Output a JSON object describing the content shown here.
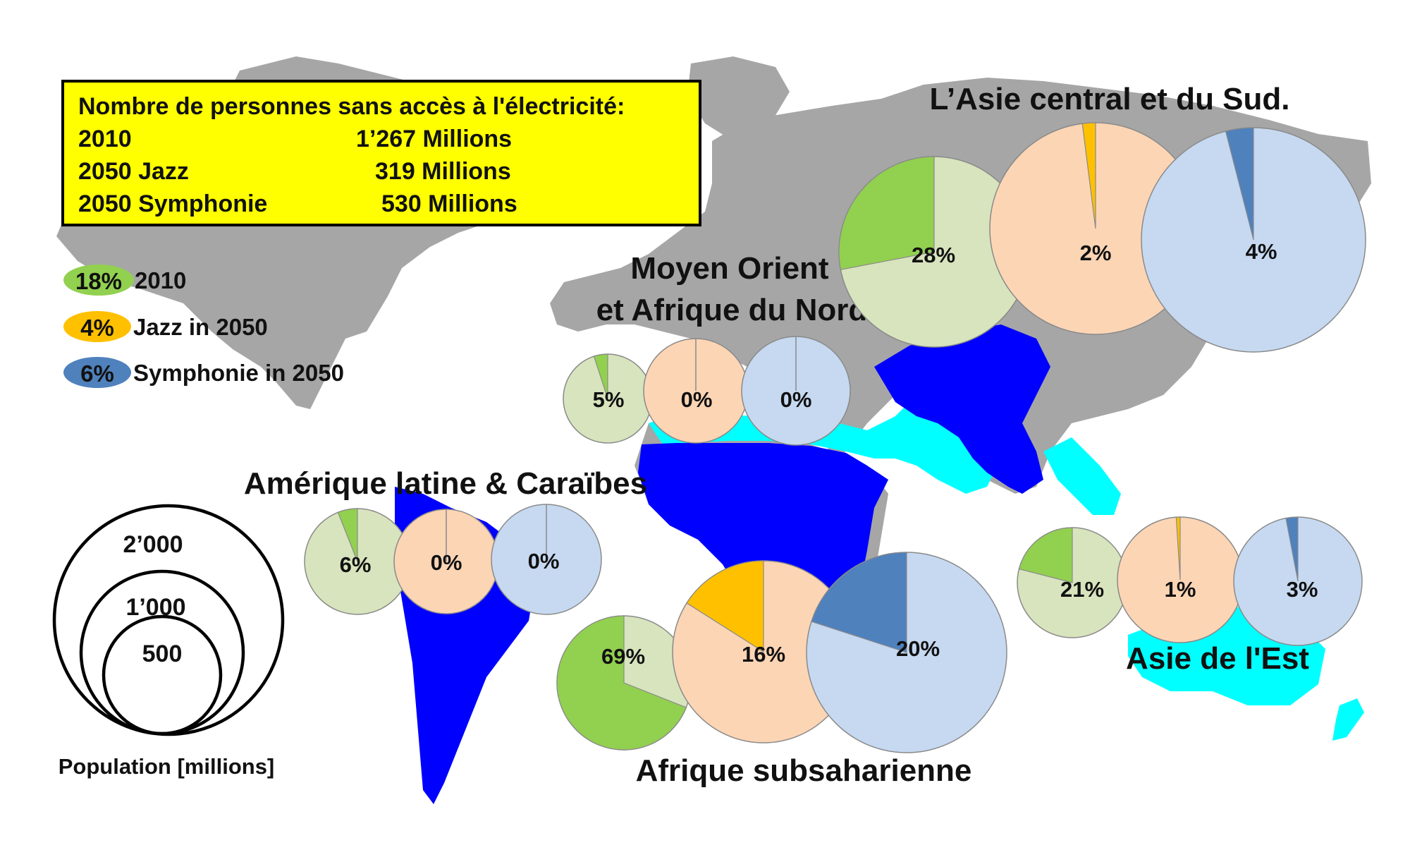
{
  "summary": {
    "title": "Nombre de personnes sans accès à l'électricité:",
    "rows": [
      {
        "label": "2010",
        "value": "1’267 Millions"
      },
      {
        "label": "2050 Jazz",
        "value": "319 Millions"
      },
      {
        "label": "2050 Symphonie",
        "value": "530 Millions"
      }
    ]
  },
  "legend": [
    {
      "badge": "18%",
      "label": "2010",
      "color": "#92d050"
    },
    {
      "badge": "4%",
      "label": "Jazz in 2050",
      "color": "#ffc000"
    },
    {
      "badge": "6%",
      "label": "Symphonie in 2050",
      "color": "#4f81bd"
    }
  ],
  "colors": {
    "land": "#a6a6a6",
    "high_share": "#0000ff",
    "low_share": "#00ffff",
    "bg_2010": "#d7e4bd",
    "slice_2010": "#92d050",
    "bg_jazz": "#fcd5b5",
    "slice_jazz": "#ffc000",
    "bg_symphonie": "#c6d9f1",
    "slice_symphonie": "#4f81bd",
    "summary_box": "#ffff00"
  },
  "regions": [
    {
      "name": "L’Asie central et du Sud.",
      "pies": [
        {
          "pct": 28,
          "label": "28%"
        },
        {
          "pct": 2,
          "label": "2%"
        },
        {
          "pct": 4,
          "label": "4%"
        }
      ]
    },
    {
      "name": [
        "Moyen Orient",
        "et Afrique du Nord"
      ],
      "pies": [
        {
          "pct": 5,
          "label": "5%"
        },
        {
          "pct": 0,
          "label": "0%"
        },
        {
          "pct": 0,
          "label": "0%"
        }
      ]
    },
    {
      "name": "Amérique latine &  Caraïbes",
      "pies": [
        {
          "pct": 6,
          "label": "6%"
        },
        {
          "pct": 0,
          "label": "0%"
        },
        {
          "pct": 0,
          "label": "0%"
        }
      ]
    },
    {
      "name": "Afrique subsaharienne",
      "pies": [
        {
          "pct": 69,
          "label": "69%"
        },
        {
          "pct": 16,
          "label": "16%"
        },
        {
          "pct": 20,
          "label": "20%"
        }
      ]
    },
    {
      "name": "Asie de l'Est",
      "pies": [
        {
          "pct": 21,
          "label": "21%"
        },
        {
          "pct": 1,
          "label": "1%"
        },
        {
          "pct": 3,
          "label": "3%"
        }
      ]
    }
  ],
  "scale": {
    "circles": [
      {
        "label": "2’000",
        "population": 2000
      },
      {
        "label": "1’000",
        "population": 1000
      },
      {
        "label": "500",
        "population": 500
      }
    ],
    "caption": "Population [millions]"
  }
}
